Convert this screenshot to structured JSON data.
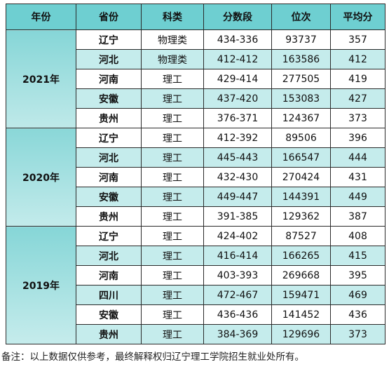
{
  "table": {
    "headers": [
      "年份",
      "省份",
      "科类",
      "分数段",
      "位次",
      "平均分"
    ],
    "groups": [
      {
        "year": "2021年",
        "rows": [
          {
            "province": "辽宁",
            "category": "物理类",
            "score_range": "434-336",
            "rank": "93737",
            "average": "357"
          },
          {
            "province": "河北",
            "category": "物理类",
            "score_range": "412-412",
            "rank": "163586",
            "average": "412"
          },
          {
            "province": "河南",
            "category": "理工",
            "score_range": "429-414",
            "rank": "277505",
            "average": "419"
          },
          {
            "province": "安徽",
            "category": "理工",
            "score_range": "437-420",
            "rank": "153083",
            "average": "427"
          },
          {
            "province": "贵州",
            "category": "理工",
            "score_range": "376-371",
            "rank": "124367",
            "average": "373"
          }
        ]
      },
      {
        "year": "2020年",
        "rows": [
          {
            "province": "辽宁",
            "category": "理工",
            "score_range": "412-392",
            "rank": "89506",
            "average": "396"
          },
          {
            "province": "河北",
            "category": "理工",
            "score_range": "445-443",
            "rank": "166547",
            "average": "444"
          },
          {
            "province": "河南",
            "category": "理工",
            "score_range": "432-430",
            "rank": "270424",
            "average": "431"
          },
          {
            "province": "安徽",
            "category": "理工",
            "score_range": "449-447",
            "rank": "144391",
            "average": "449"
          },
          {
            "province": "贵州",
            "category": "理工",
            "score_range": "391-385",
            "rank": "129362",
            "average": "387"
          }
        ]
      },
      {
        "year": "2019年",
        "rows": [
          {
            "province": "辽宁",
            "category": "理工",
            "score_range": "424-402",
            "rank": "87527",
            "average": "408"
          },
          {
            "province": "河北",
            "category": "理工",
            "score_range": "416-414",
            "rank": "166265",
            "average": "415"
          },
          {
            "province": "河南",
            "category": "理工",
            "score_range": "403-393",
            "rank": "269668",
            "average": "395"
          },
          {
            "province": "四川",
            "category": "理工",
            "score_range": "472-467",
            "rank": "159471",
            "average": "469"
          },
          {
            "province": "安徽",
            "category": "理工",
            "score_range": "436-436",
            "rank": "141452",
            "average": "436"
          },
          {
            "province": "贵州",
            "category": "理工",
            "score_range": "384-369",
            "rank": "129696",
            "average": "373"
          }
        ]
      }
    ]
  },
  "note": "备注：以上数据仅供参考，最终解释权归辽宁理工学院招生就业处所有。"
}
